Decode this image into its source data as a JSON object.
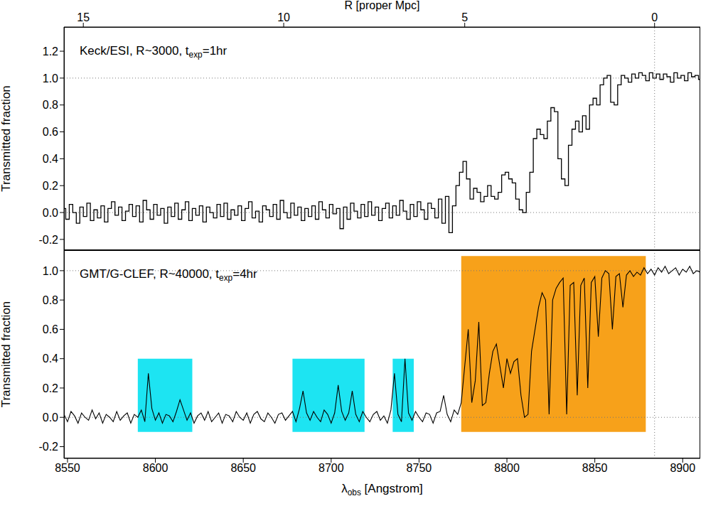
{
  "chart_data": [
    {
      "type": "line",
      "annotation": {
        "text": "Keck/ESI, R~3000, t",
        "sub": "exp",
        "after": "=1hr"
      },
      "ylabel": "Transmitted fraction",
      "x2label": "R [proper Mpc]",
      "x2lim": [
        8548,
        8910
      ],
      "x2ticks": [
        {
          "value": 8559,
          "label": "15"
        },
        {
          "value": 8673,
          "label": "10"
        },
        {
          "value": 8776,
          "label": "5"
        },
        {
          "value": 8884,
          "label": "0"
        }
      ],
      "xlim": [
        8548,
        8910
      ],
      "ylim": [
        -0.28,
        1.38
      ],
      "yticks": [
        -0.2,
        {
          "value": 0,
          "label": "0.0"
        },
        0.2,
        0.4,
        0.6,
        0.8,
        {
          "value": 1,
          "label": "1.0"
        },
        1.2
      ],
      "color": "#000000",
      "line_style": "steps",
      "hlines": [
        0,
        1
      ],
      "vlines": [
        8884
      ],
      "x": [
        8548,
        8550,
        8552,
        8554,
        8556,
        8558,
        8560,
        8562,
        8564,
        8566,
        8568,
        8570,
        8572,
        8574,
        8576,
        8578,
        8580,
        8582,
        8584,
        8586,
        8588,
        8590,
        8592,
        8594,
        8596,
        8598,
        8600,
        8602,
        8604,
        8606,
        8608,
        8610,
        8612,
        8614,
        8616,
        8618,
        8620,
        8622,
        8624,
        8626,
        8628,
        8630,
        8632,
        8634,
        8636,
        8638,
        8640,
        8642,
        8644,
        8646,
        8648,
        8650,
        8652,
        8654,
        8656,
        8658,
        8660,
        8662,
        8664,
        8666,
        8668,
        8670,
        8672,
        8674,
        8676,
        8678,
        8680,
        8682,
        8684,
        8686,
        8688,
        8690,
        8692,
        8694,
        8696,
        8698,
        8700,
        8702,
        8704,
        8706,
        8708,
        8710,
        8712,
        8714,
        8716,
        8718,
        8720,
        8722,
        8724,
        8726,
        8728,
        8730,
        8732,
        8734,
        8736,
        8738,
        8740,
        8742,
        8744,
        8746,
        8748,
        8750,
        8752,
        8754,
        8756,
        8758,
        8760,
        8762,
        8764,
        8766,
        8768,
        8770,
        8772,
        8774,
        8776,
        8778,
        8780,
        8782,
        8784,
        8786,
        8788,
        8790,
        8792,
        8794,
        8796,
        8798,
        8800,
        8802,
        8804,
        8806,
        8808,
        8810,
        8812,
        8814,
        8816,
        8818,
        8820,
        8822,
        8824,
        8826,
        8828,
        8830,
        8832,
        8834,
        8836,
        8838,
        8840,
        8842,
        8844,
        8846,
        8848,
        8850,
        8852,
        8854,
        8856,
        8858,
        8860,
        8862,
        8864,
        8866,
        8868,
        8870,
        8872,
        8874,
        8876,
        8878,
        8880,
        8882,
        8884,
        8886,
        8888,
        8890,
        8892,
        8894,
        8896,
        8898,
        8900,
        8902,
        8904,
        8906,
        8908,
        8910
      ],
      "values": [
        0.03,
        -0.05,
        0.06,
        0.0,
        -0.08,
        0.04,
        -0.03,
        0.07,
        -0.06,
        0.02,
        -0.04,
        0.05,
        -0.07,
        0.03,
        0.08,
        -0.02,
        0.04,
        -0.06,
        0.01,
        0.06,
        -0.03,
        0.05,
        -0.07,
        0.09,
        0.02,
        -0.05,
        0.06,
        -0.02,
        0.03,
        -0.08,
        0.04,
        -0.03,
        0.07,
        -0.05,
        0.02,
        0.08,
        -0.06,
        0.03,
        -0.02,
        0.05,
        -0.07,
        0.04,
        0.0,
        -0.04,
        0.06,
        -0.03,
        0.07,
        -0.05,
        0.02,
        -0.02,
        0.05,
        -0.06,
        0.03,
        0.08,
        -0.04,
        0.01,
        -0.07,
        0.05,
        0.02,
        -0.03,
        0.06,
        -0.05,
        0.09,
        0.0,
        -0.04,
        0.07,
        -0.02,
        0.04,
        -0.06,
        0.03,
        -0.03,
        0.05,
        -0.05,
        0.08,
        0.02,
        -0.04,
        0.06,
        -0.01,
        0.03,
        -0.12,
        0.04,
        -0.05,
        0.07,
        0.01,
        -0.04,
        0.06,
        -0.03,
        0.08,
        -0.02,
        0.04,
        -0.06,
        0.03,
        0.07,
        -0.04,
        0.05,
        -0.02,
        0.09,
        0.01,
        -0.05,
        0.06,
        -0.03,
        0.08,
        0.02,
        -0.05,
        0.07,
        0.03,
        -0.04,
        0.1,
        -0.08,
        0.12,
        -0.15,
        0.05,
        0.2,
        0.3,
        0.38,
        0.25,
        0.1,
        0.18,
        0.15,
        0.08,
        0.12,
        0.2,
        0.12,
        0.1,
        0.15,
        0.28,
        0.3,
        0.25,
        0.22,
        0.1,
        0.02,
        0.0,
        0.15,
        0.3,
        0.55,
        0.62,
        0.58,
        0.55,
        0.68,
        0.78,
        0.75,
        0.4,
        0.25,
        0.2,
        0.5,
        0.62,
        0.68,
        0.6,
        0.72,
        0.62,
        0.8,
        0.85,
        0.8,
        0.95,
        1.0,
        1.02,
        0.82,
        0.8,
        0.95,
        1.02,
        1.0,
        0.97,
        1.03,
        1.0,
        1.04,
        1.02,
        0.98,
        1.04,
        1.0,
        1.03,
        0.99,
        1.03,
        1.01,
        0.97,
        1.04,
        1.0,
        1.02,
        0.98,
        1.04,
        1.01,
        1.02,
        0.99
      ]
    },
    {
      "type": "line",
      "annotation": {
        "text": "GMT/G-CLEF, R~40000, t",
        "sub": "exp",
        "after": "=4hr"
      },
      "ylabel": "Transmitted fraction",
      "xlabel": {
        "text": "λ",
        "sub": "obs",
        "after": " [Angstrom]"
      },
      "xlim": [
        8548,
        8910
      ],
      "xticks": [
        8550,
        8600,
        8650,
        8700,
        8750,
        8800,
        8850,
        8900
      ],
      "ylim": [
        -0.28,
        1.14
      ],
      "yticks": [
        -0.2,
        {
          "value": 0,
          "label": "0.0"
        },
        0.2,
        0.4,
        0.6,
        0.8,
        {
          "value": 1,
          "label": "1.0"
        }
      ],
      "color": "#000000",
      "line_style": "solid",
      "hlines": [
        0,
        1
      ],
      "vlines": [
        8884
      ],
      "regions": [
        {
          "x": [
            8590,
            8621
          ],
          "y": [
            -0.1,
            0.4
          ],
          "color": "#1de4f2"
        },
        {
          "x": [
            8678,
            8719
          ],
          "y": [
            -0.1,
            0.4
          ],
          "color": "#1de4f2"
        },
        {
          "x": [
            8735,
            8747
          ],
          "y": [
            -0.1,
            0.4
          ],
          "color": "#1de4f2"
        },
        {
          "x": [
            8774,
            8879
          ],
          "y": [
            -0.1,
            1.1
          ],
          "color": "#f7a11a"
        }
      ],
      "x": [
        8548,
        8550,
        8552,
        8554,
        8556,
        8558,
        8560,
        8562,
        8564,
        8566,
        8568,
        8570,
        8572,
        8574,
        8576,
        8578,
        8580,
        8582,
        8584,
        8586,
        8588,
        8590,
        8592,
        8594,
        8596,
        8598,
        8600,
        8602,
        8604,
        8606,
        8608,
        8610,
        8612,
        8614,
        8616,
        8618,
        8620,
        8622,
        8624,
        8626,
        8628,
        8630,
        8632,
        8634,
        8636,
        8638,
        8640,
        8642,
        8644,
        8646,
        8648,
        8650,
        8652,
        8654,
        8656,
        8658,
        8660,
        8662,
        8664,
        8666,
        8668,
        8670,
        8672,
        8674,
        8676,
        8678,
        8680,
        8682,
        8684,
        8686,
        8688,
        8690,
        8692,
        8694,
        8696,
        8698,
        8700,
        8702,
        8704,
        8706,
        8708,
        8710,
        8712,
        8714,
        8716,
        8718,
        8720,
        8722,
        8724,
        8726,
        8728,
        8730,
        8732,
        8734,
        8736,
        8738,
        8740,
        8742,
        8744,
        8746,
        8748,
        8750,
        8752,
        8754,
        8756,
        8758,
        8760,
        8762,
        8764,
        8766,
        8768,
        8770,
        8772,
        8774,
        8776,
        8778,
        8780,
        8782,
        8784,
        8786,
        8788,
        8790,
        8792,
        8794,
        8796,
        8798,
        8800,
        8802,
        8804,
        8806,
        8808,
        8810,
        8812,
        8814,
        8816,
        8818,
        8820,
        8822,
        8824,
        8826,
        8828,
        8830,
        8832,
        8834,
        8836,
        8838,
        8840,
        8842,
        8844,
        8846,
        8848,
        8850,
        8852,
        8854,
        8856,
        8858,
        8860,
        8862,
        8864,
        8866,
        8868,
        8870,
        8872,
        8874,
        8876,
        8878,
        8880,
        8882,
        8884,
        8886,
        8888,
        8890,
        8892,
        8894,
        8896,
        8898,
        8900,
        8902,
        8904,
        8906,
        8908,
        8910
      ],
      "values": [
        0.02,
        -0.03,
        0.04,
        0.01,
        -0.04,
        0.03,
        0.0,
        -0.02,
        0.05,
        -0.01,
        0.03,
        -0.04,
        0.02,
        0.0,
        -0.03,
        0.04,
        -0.02,
        0.01,
        0.03,
        -0.04,
        0.02,
        0.0,
        0.05,
        -0.03,
        0.3,
        0.06,
        -0.02,
        0.03,
        -0.04,
        0.02,
        0.01,
        -0.03,
        0.04,
        0.12,
        0.05,
        -0.02,
        0.03,
        -0.04,
        0.01,
        0.03,
        -0.02,
        0.04,
        -0.03,
        0.0,
        0.03,
        -0.04,
        0.02,
        0.01,
        -0.03,
        0.04,
        0.0,
        -0.02,
        0.03,
        -0.04,
        0.02,
        0.04,
        -0.01,
        -0.03,
        0.03,
        0.0,
        -0.04,
        0.02,
        0.03,
        -0.02,
        0.01,
        0.04,
        -0.03,
        0.06,
        0.18,
        0.03,
        -0.02,
        0.04,
        0.0,
        -0.03,
        0.05,
        0.02,
        -0.04,
        0.03,
        0.22,
        0.04,
        -0.02,
        0.03,
        0.18,
        0.02,
        -0.03,
        0.04,
        0.0,
        -0.03,
        0.02,
        0.04,
        -0.02,
        0.01,
        -0.04,
        0.05,
        0.3,
        0.02,
        -0.03,
        0.4,
        0.03,
        -0.02,
        0.04,
        0.0,
        -0.03,
        0.03,
        0.02,
        -0.04,
        0.03,
        0.04,
        0.15,
        0.02,
        -0.03,
        0.05,
        0.02,
        0.1,
        0.35,
        0.6,
        0.1,
        0.25,
        0.65,
        0.08,
        0.1,
        0.3,
        0.45,
        0.5,
        0.35,
        0.2,
        0.4,
        0.3,
        0.38,
        0.4,
        0.15,
        0.0,
        0.02,
        0.45,
        0.6,
        0.75,
        0.85,
        0.8,
        0.02,
        0.8,
        0.88,
        0.92,
        0.95,
        0.02,
        0.9,
        0.92,
        0.15,
        0.9,
        0.95,
        0.2,
        0.92,
        0.96,
        0.55,
        0.95,
        1.0,
        0.98,
        0.6,
        0.96,
        0.98,
        0.75,
        0.97,
        1.0,
        0.96,
        0.99,
        0.97,
        1.02,
        0.98,
        1.01,
        0.97,
        1.02,
        0.99,
        1.03,
        0.98,
        1.0,
        1.02,
        0.97,
        1.01,
        0.99,
        1.03,
        0.98,
        1.0,
        0.99
      ]
    }
  ]
}
